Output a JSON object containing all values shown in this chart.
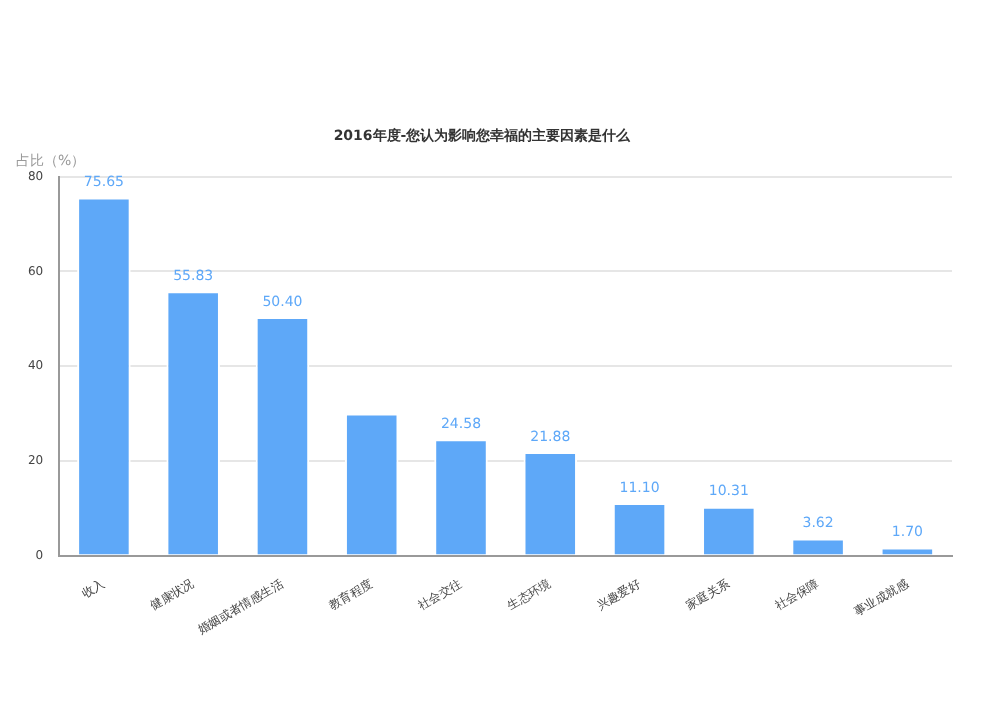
{
  "chart_data": {
    "type": "bar",
    "title": "2016年度-您认为影响您幸福的主要因素是什么",
    "ylabel": "占比（%）",
    "categories": [
      "收入",
      "健康状况",
      "婚姻或者情感生活",
      "教育程度",
      "社会交往",
      "生态环境",
      "兴趣爱好",
      "家庭关系",
      "社会保障",
      "事业成就感"
    ],
    "values": [
      75.65,
      55.83,
      50.4,
      30,
      24.58,
      21.88,
      11.1,
      10.31,
      3.62,
      1.7
    ],
    "value_labels": [
      "75.65",
      "55.83",
      "50.40",
      null,
      "24.58",
      "21.88",
      "11.10",
      "10.31",
      "3.62",
      "1.70"
    ],
    "color": "#5ea8f8",
    "ylim": [
      0,
      80
    ],
    "yticks": [
      0,
      20,
      40,
      60,
      80
    ],
    "grid": "y",
    "legend": false
  }
}
